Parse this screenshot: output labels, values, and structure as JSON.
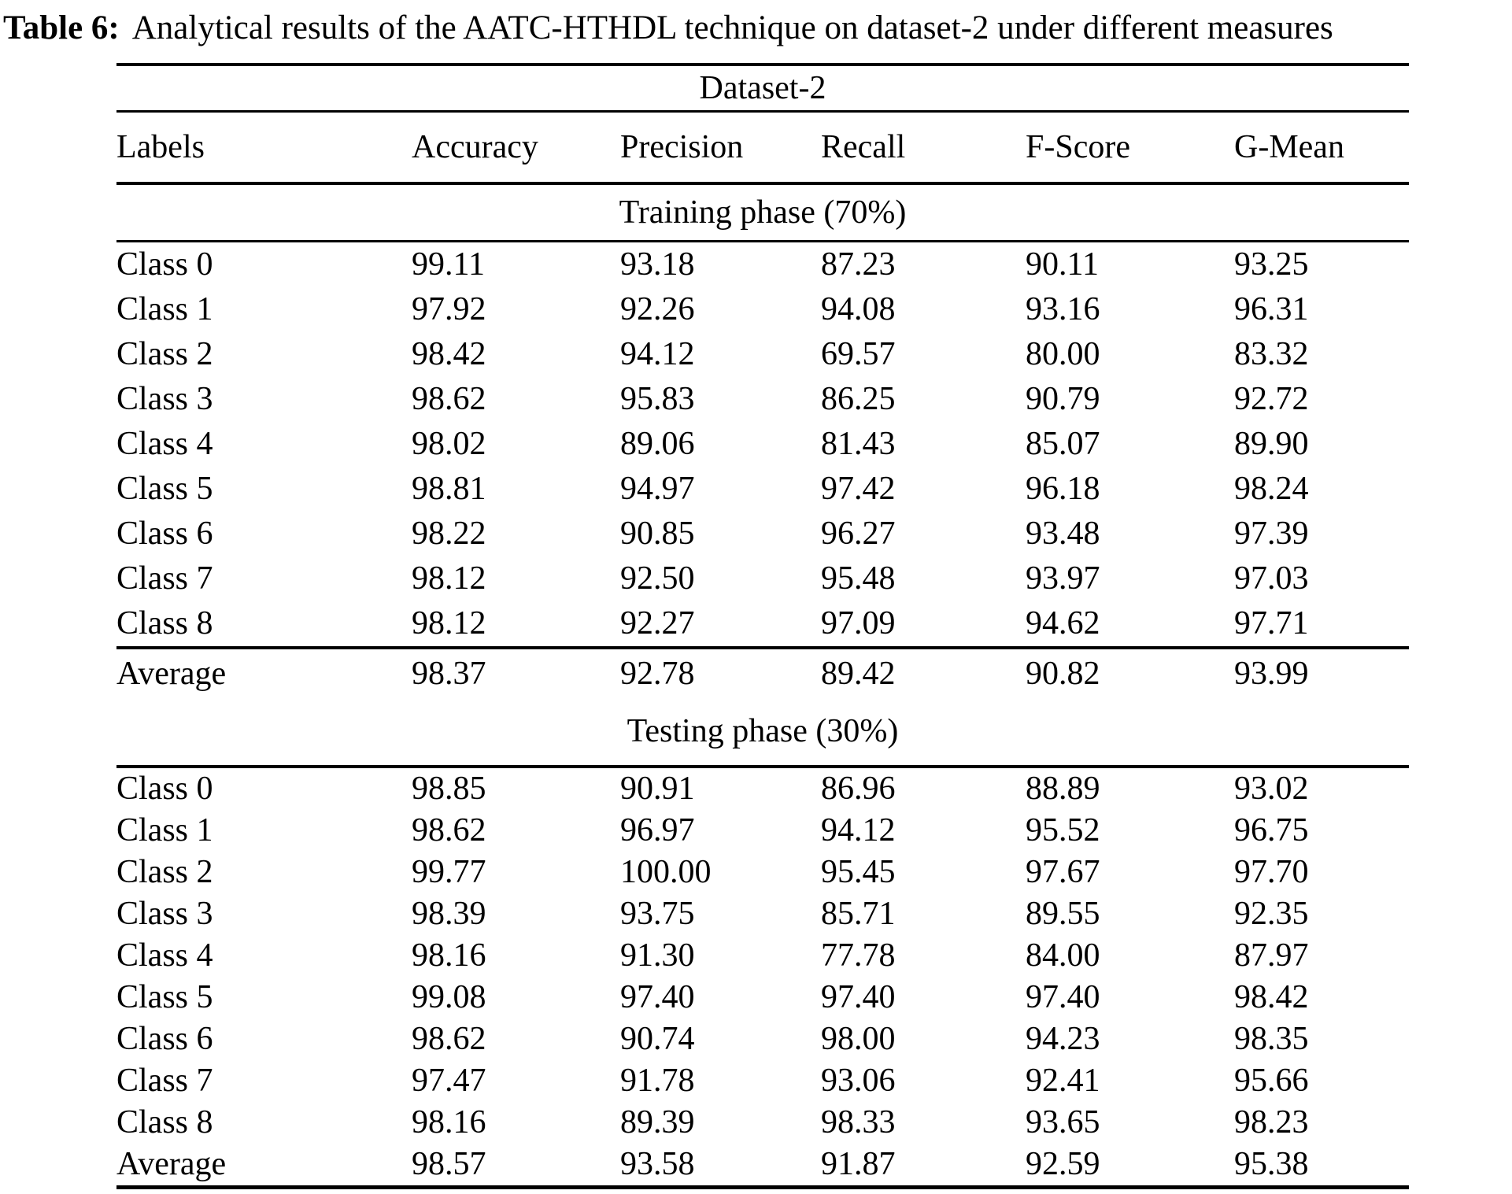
{
  "caption": {
    "label": "Table 6:",
    "text": "Analytical results of the AATC-HTHDL technique on dataset-2 under different measures"
  },
  "table": {
    "dataset_title": "Dataset-2",
    "columns": {
      "labels": "Labels",
      "accuracy": "Accuracy",
      "precision": "Precision",
      "recall": "Recall",
      "fscore": "F-Score",
      "gmean": "G-Mean"
    },
    "training": {
      "title": "Training phase (70%)",
      "rows": [
        [
          "Class 0",
          "99.11",
          "93.18",
          "87.23",
          "90.11",
          "93.25"
        ],
        [
          "Class 1",
          "97.92",
          "92.26",
          "94.08",
          "93.16",
          "96.31"
        ],
        [
          "Class 2",
          "98.42",
          "94.12",
          "69.57",
          "80.00",
          "83.32"
        ],
        [
          "Class 3",
          "98.62",
          "95.83",
          "86.25",
          "90.79",
          "92.72"
        ],
        [
          "Class 4",
          "98.02",
          "89.06",
          "81.43",
          "85.07",
          "89.90"
        ],
        [
          "Class 5",
          "98.81",
          "94.97",
          "97.42",
          "96.18",
          "98.24"
        ],
        [
          "Class 6",
          "98.22",
          "90.85",
          "96.27",
          "93.48",
          "97.39"
        ],
        [
          "Class 7",
          "98.12",
          "92.50",
          "95.48",
          "93.97",
          "97.03"
        ],
        [
          "Class 8",
          "98.12",
          "92.27",
          "97.09",
          "94.62",
          "97.71"
        ]
      ],
      "average": [
        "Average",
        "98.37",
        "92.78",
        "89.42",
        "90.82",
        "93.99"
      ]
    },
    "testing": {
      "title": "Testing phase (30%)",
      "rows": [
        [
          "Class 0",
          "98.85",
          "90.91",
          "86.96",
          "88.89",
          "93.02"
        ],
        [
          "Class 1",
          "98.62",
          "96.97",
          "94.12",
          "95.52",
          "96.75"
        ],
        [
          "Class 2",
          "99.77",
          "100.00",
          "95.45",
          "97.67",
          "97.70"
        ],
        [
          "Class 3",
          "98.39",
          "93.75",
          "85.71",
          "89.55",
          "92.35"
        ],
        [
          "Class 4",
          "98.16",
          "91.30",
          "77.78",
          "84.00",
          "87.97"
        ],
        [
          "Class 5",
          "99.08",
          "97.40",
          "97.40",
          "97.40",
          "98.42"
        ],
        [
          "Class 6",
          "98.62",
          "90.74",
          "98.00",
          "94.23",
          "98.35"
        ],
        [
          "Class 7",
          "97.47",
          "91.78",
          "93.06",
          "92.41",
          "95.66"
        ],
        [
          "Class 8",
          "98.16",
          "89.39",
          "98.33",
          "93.65",
          "98.23"
        ]
      ],
      "average": [
        "Average",
        "98.57",
        "93.58",
        "91.87",
        "92.59",
        "95.38"
      ]
    }
  }
}
